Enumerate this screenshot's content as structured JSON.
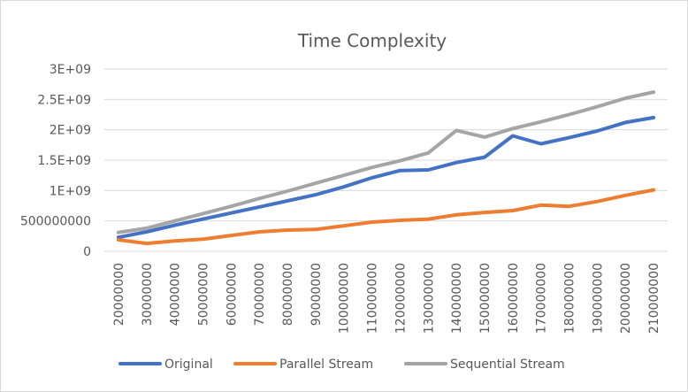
{
  "chart_data": {
    "type": "line",
    "title": "Time Complexity",
    "xlabel": "",
    "ylabel": "",
    "categories": [
      "20000000",
      "30000000",
      "40000000",
      "50000000",
      "60000000",
      "70000000",
      "80000000",
      "90000000",
      "100000000",
      "110000000",
      "120000000",
      "130000000",
      "140000000",
      "150000000",
      "160000000",
      "170000000",
      "180000000",
      "190000000",
      "200000000",
      "210000000"
    ],
    "y_ticks": [
      {
        "value": 0,
        "label": "0"
      },
      {
        "value": 500000000,
        "label": "500000000"
      },
      {
        "value": 1000000000,
        "label": "1E+09"
      },
      {
        "value": 1500000000,
        "label": "1.5E+09"
      },
      {
        "value": 2000000000,
        "label": "2E+09"
      },
      {
        "value": 2500000000,
        "label": "2.5E+09"
      },
      {
        "value": 3000000000,
        "label": "3E+09"
      }
    ],
    "ylim": [
      0,
      3000000000
    ],
    "grid": true,
    "legend_position": "bottom",
    "series": [
      {
        "name": "Original",
        "color": "#4472C4",
        "values": [
          230000000,
          320000000,
          430000000,
          530000000,
          630000000,
          730000000,
          830000000,
          930000000,
          1060000000,
          1210000000,
          1330000000,
          1340000000,
          1460000000,
          1550000000,
          1900000000,
          1770000000,
          1870000000,
          1980000000,
          2120000000,
          2200000000
        ]
      },
      {
        "name": "Parallel Stream",
        "color": "#ED7D31",
        "values": [
          190000000,
          130000000,
          170000000,
          200000000,
          260000000,
          320000000,
          350000000,
          360000000,
          420000000,
          480000000,
          510000000,
          530000000,
          600000000,
          640000000,
          670000000,
          760000000,
          740000000,
          820000000,
          920000000,
          1010000000
        ]
      },
      {
        "name": "Sequential Stream",
        "color": "#A5A5A5",
        "values": [
          310000000,
          380000000,
          500000000,
          620000000,
          740000000,
          870000000,
          990000000,
          1120000000,
          1250000000,
          1380000000,
          1490000000,
          1620000000,
          1990000000,
          1880000000,
          2020000000,
          2130000000,
          2250000000,
          2380000000,
          2520000000,
          2620000000
        ]
      }
    ]
  }
}
